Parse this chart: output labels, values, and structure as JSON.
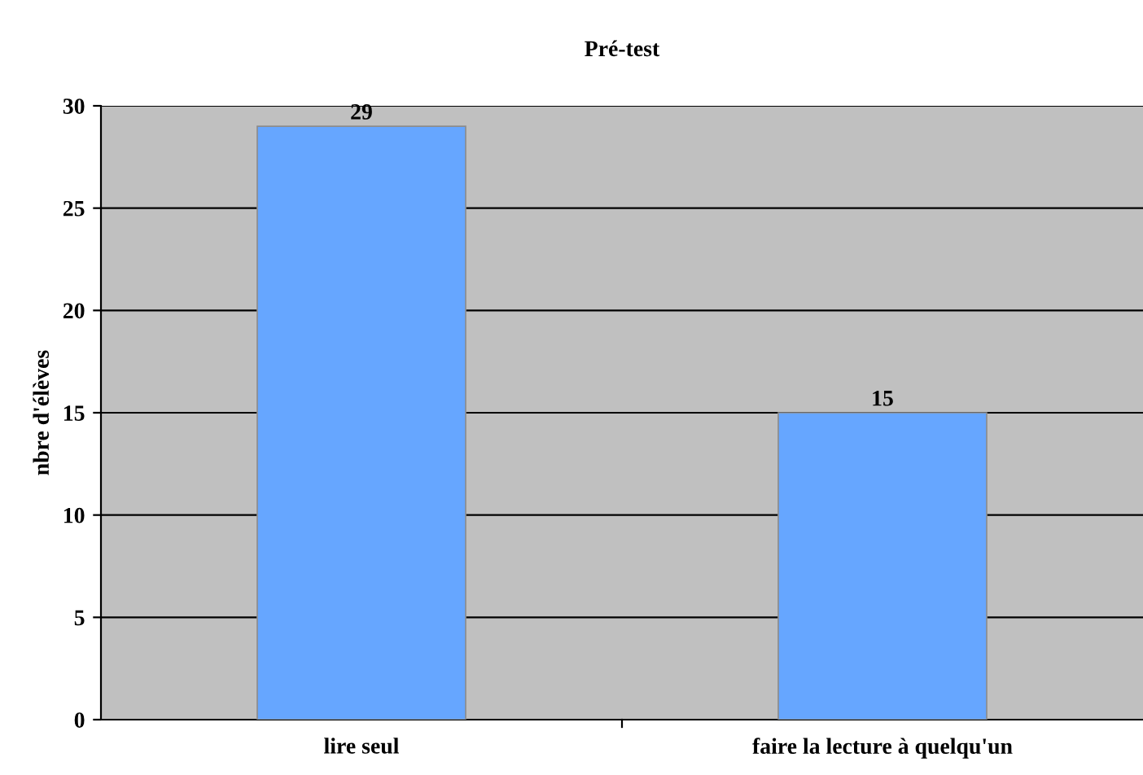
{
  "chart_data": {
    "type": "bar",
    "title": "Pré-test",
    "ylabel": "nbre d'élèves",
    "categories": [
      "lire seul",
      "faire la lecture à quelqu'un"
    ],
    "values": [
      29,
      15
    ],
    "color": "#66a6ff",
    "ylim": [
      0,
      30
    ],
    "yticks": [
      0,
      5,
      10,
      15,
      20,
      25,
      30
    ],
    "grid": "y",
    "data_labels": true,
    "legend": false
  }
}
